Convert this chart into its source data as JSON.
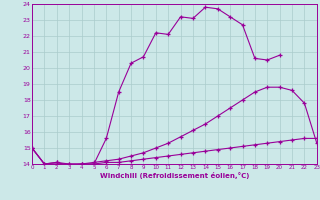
{
  "xlabel": "Windchill (Refroidissement éolien,°C)",
  "xlim": [
    0,
    23
  ],
  "ylim": [
    14,
    24
  ],
  "yticks": [
    14,
    15,
    16,
    17,
    18,
    19,
    20,
    21,
    22,
    23,
    24
  ],
  "xticks": [
    0,
    1,
    2,
    3,
    4,
    5,
    6,
    7,
    8,
    9,
    10,
    11,
    12,
    13,
    14,
    15,
    16,
    17,
    18,
    19,
    20,
    21,
    22,
    23
  ],
  "background_color": "#cce8e8",
  "grid_color": "#aacccc",
  "line_color": "#990099",
  "curve1": {
    "x": [
      0,
      1,
      2,
      3,
      4,
      5,
      6,
      7,
      8,
      9,
      10,
      11,
      12,
      13,
      14,
      15,
      16,
      17,
      18,
      19,
      20
    ],
    "y": [
      15.0,
      14.0,
      14.1,
      13.9,
      14.0,
      14.0,
      15.6,
      18.5,
      20.3,
      20.7,
      22.2,
      22.1,
      23.2,
      23.1,
      23.8,
      23.7,
      23.2,
      22.7,
      20.6,
      20.5,
      20.8
    ]
  },
  "curve2": {
    "x": [
      0,
      1,
      2,
      3,
      4,
      5,
      6,
      7,
      8,
      9,
      10,
      11,
      12,
      13,
      14,
      15,
      16,
      17,
      18,
      19,
      20,
      21,
      22,
      23
    ],
    "y": [
      15.0,
      14.0,
      14.1,
      14.0,
      14.0,
      14.1,
      14.2,
      14.3,
      14.5,
      14.7,
      15.0,
      15.3,
      15.7,
      16.1,
      16.5,
      17.0,
      17.5,
      18.0,
      18.5,
      18.8,
      18.8,
      18.6,
      17.8,
      15.3
    ]
  },
  "curve3": {
    "x": [
      0,
      1,
      2,
      3,
      4,
      5,
      6,
      7,
      8,
      9,
      10,
      11,
      12,
      13,
      14,
      15,
      16,
      17,
      18,
      19,
      20,
      21,
      22,
      23
    ],
    "y": [
      15.0,
      14.0,
      14.0,
      14.0,
      14.0,
      14.0,
      14.1,
      14.1,
      14.2,
      14.3,
      14.4,
      14.5,
      14.6,
      14.7,
      14.8,
      14.9,
      15.0,
      15.1,
      15.2,
      15.3,
      15.4,
      15.5,
      15.6,
      15.6
    ]
  }
}
